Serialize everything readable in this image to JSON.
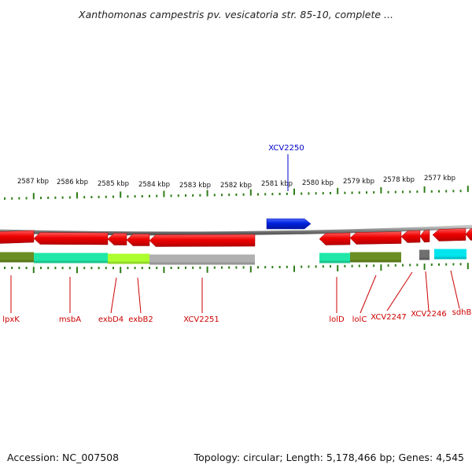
{
  "title": "Xanthomonas campestris pv. vesicatoria str. 85-10, complete ...",
  "footer": {
    "accession": "Accession: NC_007508",
    "summary": "Topology: circular; Length: 5,178,466 bp; Genes: 4,545"
  },
  "colors": {
    "forward_gene": "#0022dd",
    "reverse_gene": "#ee0000",
    "backbone": "#8a8a8a",
    "tick": "#2e7d18",
    "label_bottom": "#cc0000",
    "label_top": "#0000cc"
  },
  "ruler": {
    "labels": [
      "2587 kbp",
      "2586 kbp",
      "2585 kbp",
      "2584 kbp",
      "2583 kbp",
      "2582 kbp",
      "2581 kbp",
      "2580 kbp",
      "2579 kbp",
      "2578 kbp",
      "2577 kbp"
    ]
  },
  "genes_top": [
    {
      "name": "XCV2250",
      "color": "#0022dd"
    }
  ],
  "genes_bottom": [
    {
      "name": "lpxK"
    },
    {
      "name": "msbA"
    },
    {
      "name": "exbD4"
    },
    {
      "name": "exbB2"
    },
    {
      "name": "XCV2251"
    },
    {
      "name": "lolD"
    },
    {
      "name": "lolC"
    },
    {
      "name": "XCV2247"
    },
    {
      "name": "XCV2246"
    },
    {
      "name": "sdhB"
    }
  ],
  "category_band_colors": [
    "#6b8e23",
    "#20e8a8",
    "#adff2f",
    "#b0b0b0",
    "#20e8a8",
    "#6b8e23",
    "#707070",
    "#00e5ee"
  ]
}
